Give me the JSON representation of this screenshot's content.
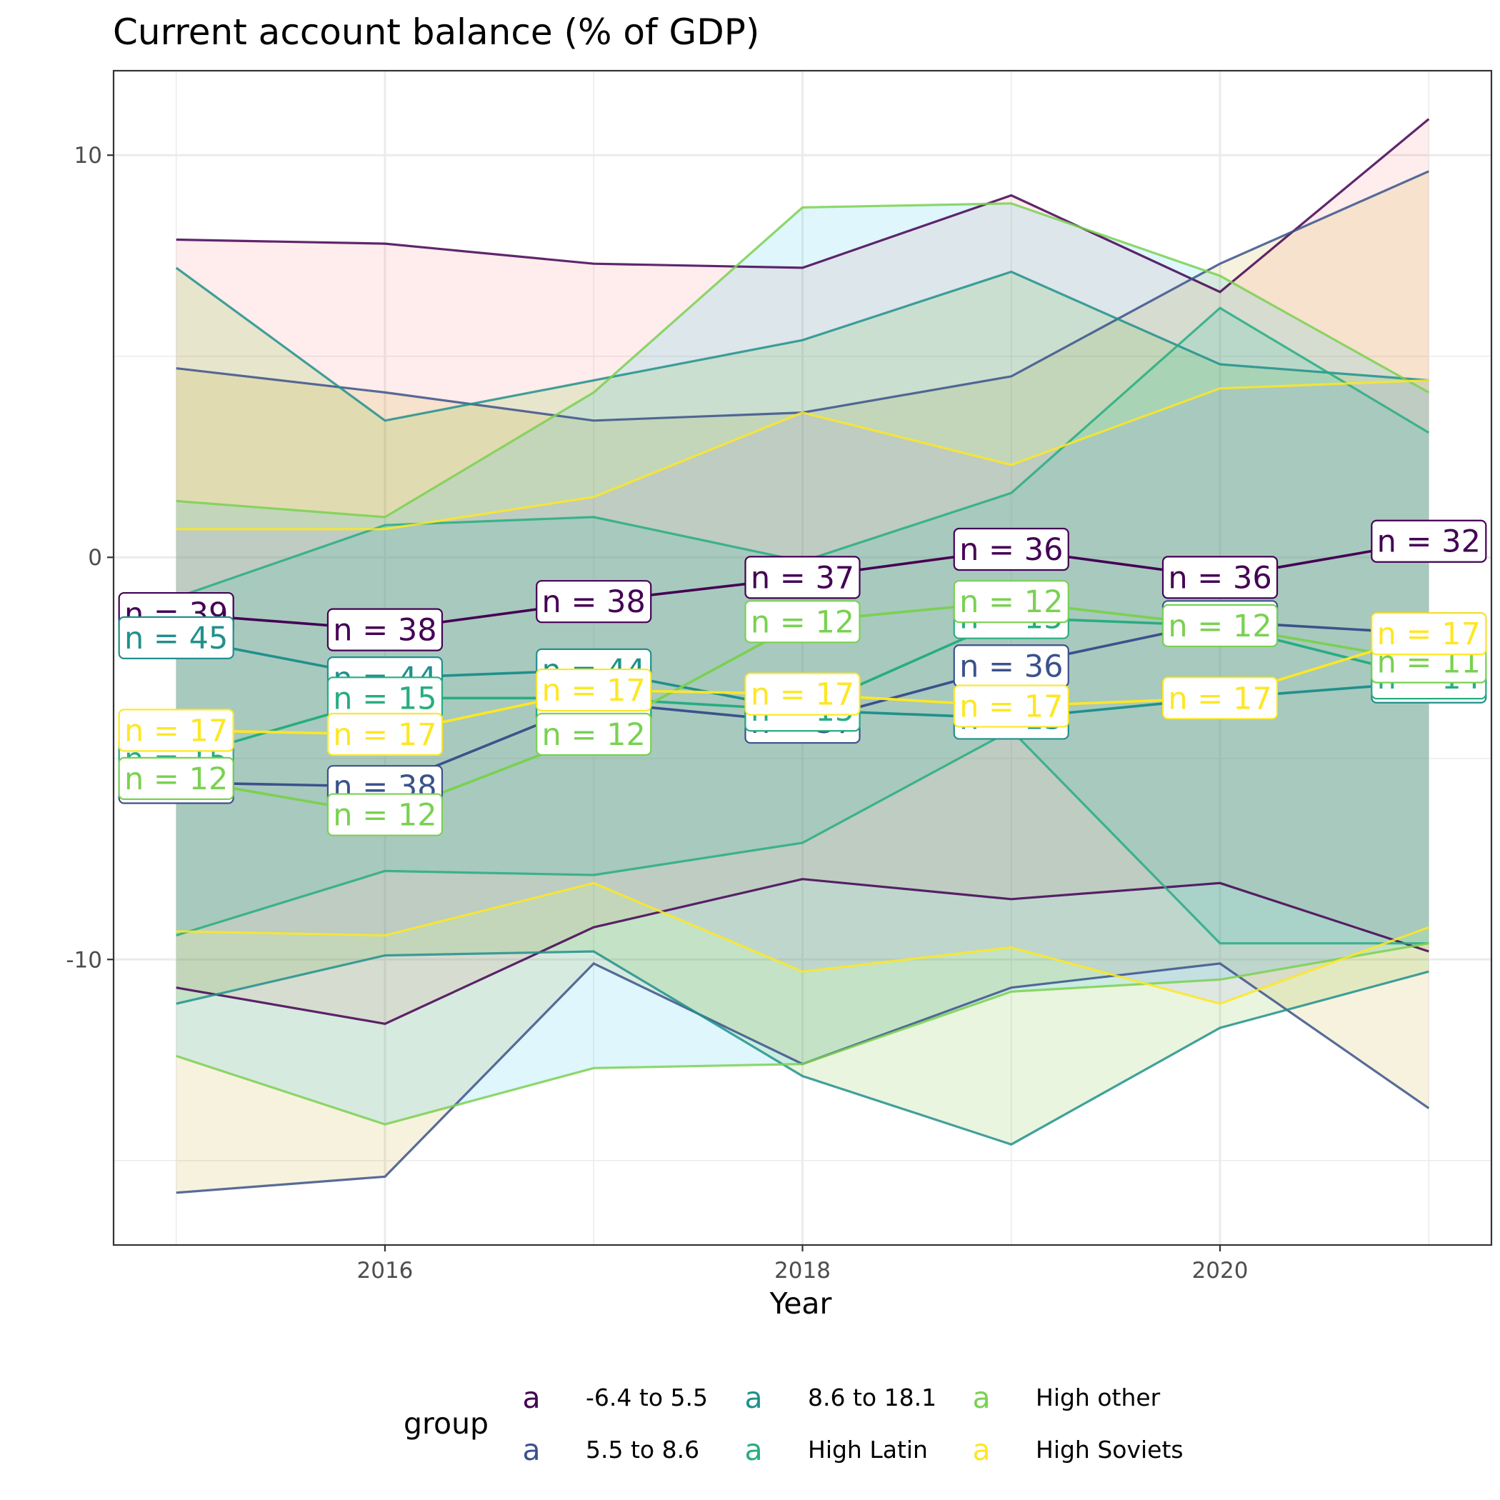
{
  "chart_data": {
    "type": "line",
    "title": "Current account balance (% of GDP)",
    "xlabel": "Year",
    "ylabel": "",
    "xlim": [
      2014.7,
      2021.3
    ],
    "ylim": [
      -17.1,
      12.1
    ],
    "x_ticks": [
      2016,
      2018,
      2020
    ],
    "y_ticks": [
      10,
      0,
      -10
    ],
    "y_tick_labels": [
      "10",
      "0",
      "-10"
    ],
    "grid": true,
    "legend": {
      "title": "group",
      "position": "bottom",
      "key_glyph": "a"
    },
    "x": [
      2015,
      2016,
      2017,
      2018,
      2019,
      2020,
      2021
    ],
    "series": [
      {
        "name": "-6.4 to 5.5",
        "color": "#440154",
        "fill": "#f8766d",
        "mean": [
          -1.4,
          -1.8,
          -1.1,
          -0.5,
          0.2,
          -0.5,
          0.4
        ],
        "upper": [
          7.9,
          7.8,
          7.3,
          7.2,
          9.0,
          6.6,
          10.9
        ],
        "lower": [
          -10.7,
          -11.6,
          -9.2,
          -8.0,
          -8.5,
          -8.1,
          -9.8
        ],
        "n": [
          39,
          38,
          38,
          37,
          36,
          36,
          32
        ]
      },
      {
        "name": "5.5 to 8.6",
        "color": "#3b528b",
        "fill": "#c49a00",
        "mean": [
          -5.6,
          -5.7,
          -3.6,
          -4.1,
          -2.7,
          -1.6,
          -1.9
        ],
        "upper": [
          4.7,
          4.1,
          3.4,
          3.6,
          4.5,
          7.3,
          9.6
        ],
        "lower": [
          -15.8,
          -15.4,
          -10.1,
          -12.6,
          -10.7,
          -10.1,
          -13.7
        ],
        "n": [
          38,
          38,
          44,
          37,
          36,
          36,
          36
        ]
      },
      {
        "name": "8.6 to 18.1",
        "color": "#21908c",
        "fill": "#53b400",
        "mean": [
          -2.0,
          -3.0,
          -2.8,
          -3.8,
          -4.0,
          -3.5,
          -3.1
        ],
        "upper": [
          7.2,
          3.4,
          4.4,
          5.4,
          7.1,
          4.8,
          4.4
        ],
        "lower": [
          -11.1,
          -9.9,
          -9.8,
          -12.9,
          -14.6,
          -11.7,
          -10.3
        ],
        "n": [
          45,
          44,
          44,
          15,
          15,
          14,
          14
        ]
      },
      {
        "name": "High Latin",
        "color": "#27ad81",
        "fill": "#00c094",
        "mean": [
          -5.0,
          -3.5,
          -3.5,
          -3.8,
          -1.5,
          -1.7,
          -3.0
        ],
        "upper": [
          -1.0,
          0.8,
          1.0,
          -0.1,
          1.6,
          6.2,
          3.1
        ],
        "lower": [
          -9.4,
          -7.8,
          -7.9,
          -7.1,
          -4.3,
          -9.6,
          -9.6
        ],
        "n": [
          15,
          15,
          15,
          15,
          15,
          14,
          14
        ]
      },
      {
        "name": "High other",
        "color": "#7ad151",
        "fill": "#00b6eb",
        "mean": [
          -5.5,
          -6.4,
          -4.4,
          -1.6,
          -1.1,
          -1.7,
          -2.6
        ],
        "upper": [
          1.4,
          1.0,
          4.1,
          8.7,
          8.8,
          7.0,
          4.1
        ],
        "lower": [
          -12.4,
          -14.1,
          -12.7,
          -12.6,
          -10.8,
          -10.5,
          -9.6
        ],
        "n": [
          12,
          12,
          12,
          12,
          12,
          12,
          11
        ]
      },
      {
        "name": "High Soviets",
        "color": "#fde725",
        "fill": "#a58aff",
        "mean": [
          -4.3,
          -4.4,
          -3.3,
          -3.4,
          -3.7,
          -3.5,
          -1.9
        ],
        "upper": [
          0.7,
          0.7,
          1.5,
          3.6,
          2.3,
          4.2,
          4.4
        ],
        "lower": [
          -9.3,
          -9.4,
          -8.1,
          -10.3,
          -9.7,
          -11.1,
          -9.2
        ],
        "n": [
          17,
          17,
          17,
          17,
          17,
          17,
          17
        ]
      }
    ]
  }
}
